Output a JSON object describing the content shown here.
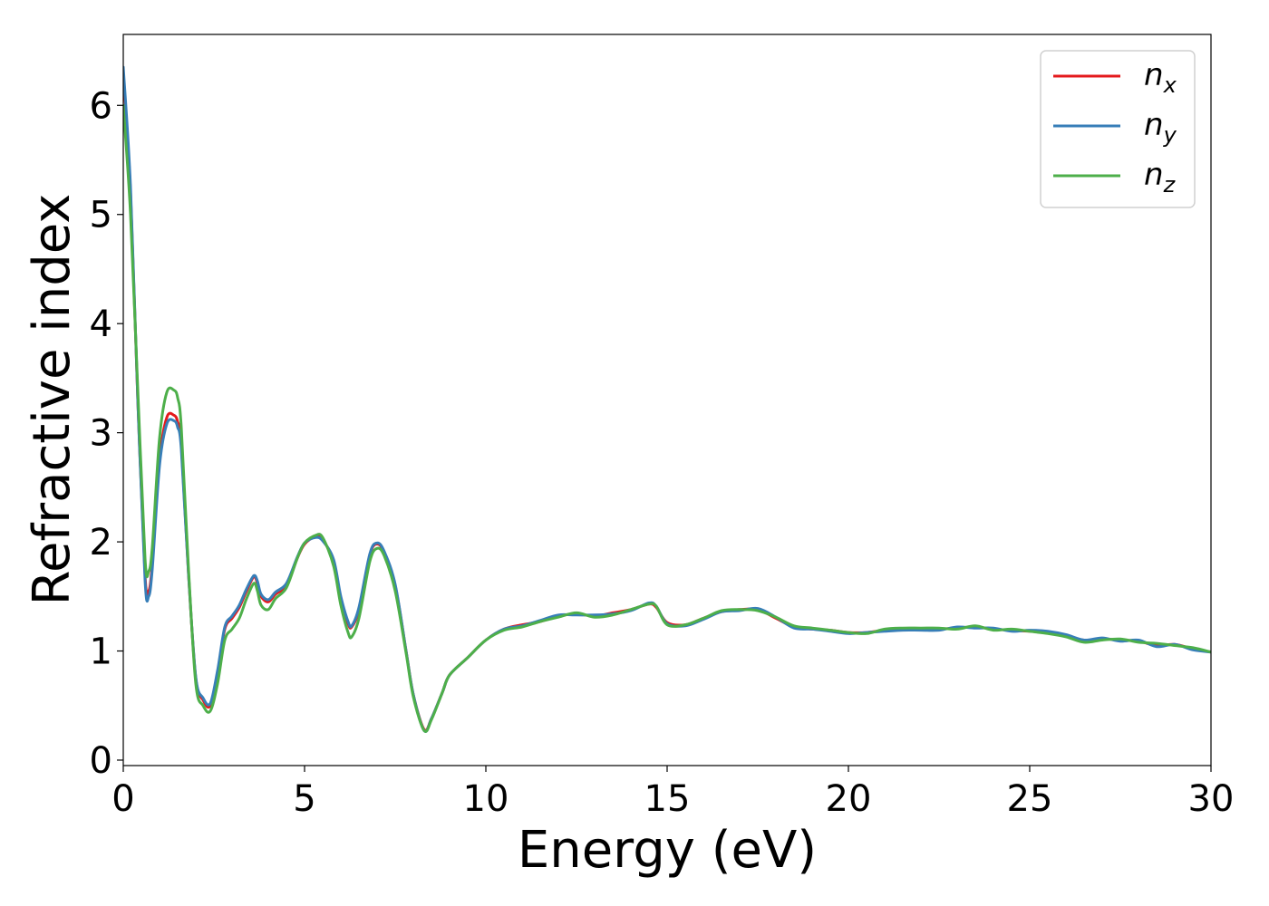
{
  "chart_data": {
    "type": "line",
    "title": "",
    "xlabel": "Energy (eV)",
    "ylabel": "Refractive index",
    "xlim": [
      0,
      30
    ],
    "ylim": [
      -0.05,
      6.65
    ],
    "xticks": [
      0,
      5,
      10,
      15,
      20,
      25,
      30
    ],
    "yticks": [
      0,
      1,
      2,
      3,
      4,
      5,
      6
    ],
    "grid": false,
    "legend_position": "top-right",
    "series": [
      {
        "name": "n",
        "subscript": "x",
        "color": "#e41a1c",
        "x": [
          0,
          0.2,
          0.4,
          0.6,
          0.7,
          0.8,
          1.0,
          1.2,
          1.4,
          1.5,
          1.6,
          1.8,
          2.0,
          2.2,
          2.4,
          2.6,
          2.8,
          3.0,
          3.2,
          3.4,
          3.6,
          3.7,
          3.8,
          4.0,
          4.2,
          4.5,
          4.8,
          5.0,
          5.3,
          5.5,
          5.8,
          6.0,
          6.2,
          6.3,
          6.5,
          6.8,
          7.0,
          7.2,
          7.5,
          7.8,
          8.0,
          8.3,
          8.5,
          8.8,
          9.0,
          9.5,
          10.0,
          10.5,
          11.0,
          11.5,
          12.0,
          12.5,
          13.0,
          13.5,
          14.0,
          14.5,
          14.7,
          15.0,
          15.5,
          16.0,
          16.5,
          17.0,
          17.5,
          18.0,
          18.5,
          19.0,
          19.5,
          20.0,
          20.5,
          21.0,
          21.5,
          22.0,
          22.5,
          23.0,
          23.5,
          24.0,
          24.5,
          25.0,
          25.5,
          26.0,
          26.5,
          27.0,
          27.5,
          28.0,
          28.5,
          29.0,
          29.5,
          30.0
        ],
        "y": [
          6.3,
          5.2,
          3.3,
          1.7,
          1.55,
          1.8,
          2.75,
          3.14,
          3.16,
          3.1,
          2.9,
          1.7,
          0.75,
          0.55,
          0.5,
          0.8,
          1.2,
          1.3,
          1.4,
          1.55,
          1.68,
          1.62,
          1.5,
          1.45,
          1.52,
          1.6,
          1.85,
          1.98,
          2.05,
          2.02,
          1.82,
          1.48,
          1.25,
          1.22,
          1.38,
          1.88,
          1.98,
          1.9,
          1.6,
          1.0,
          0.6,
          0.28,
          0.38,
          0.62,
          0.78,
          0.94,
          1.1,
          1.2,
          1.24,
          1.27,
          1.32,
          1.34,
          1.32,
          1.35,
          1.38,
          1.43,
          1.4,
          1.26,
          1.24,
          1.3,
          1.36,
          1.38,
          1.38,
          1.3,
          1.22,
          1.2,
          1.19,
          1.17,
          1.17,
          1.19,
          1.2,
          1.2,
          1.2,
          1.21,
          1.22,
          1.2,
          1.19,
          1.18,
          1.17,
          1.14,
          1.1,
          1.11,
          1.1,
          1.09,
          1.05,
          1.06,
          1.02,
          0.99
        ]
      },
      {
        "name": "n",
        "subscript": "y",
        "color": "#377eb8",
        "x": [
          0,
          0.2,
          0.4,
          0.6,
          0.7,
          0.8,
          1.0,
          1.2,
          1.4,
          1.5,
          1.6,
          1.8,
          2.0,
          2.2,
          2.4,
          2.6,
          2.8,
          3.0,
          3.2,
          3.4,
          3.6,
          3.7,
          3.8,
          4.0,
          4.2,
          4.5,
          4.8,
          5.0,
          5.3,
          5.5,
          5.8,
          6.0,
          6.2,
          6.3,
          6.5,
          6.8,
          7.0,
          7.2,
          7.5,
          7.8,
          8.0,
          8.3,
          8.5,
          8.8,
          9.0,
          9.5,
          10.0,
          10.5,
          11.0,
          11.5,
          12.0,
          12.5,
          13.0,
          13.5,
          14.0,
          14.5,
          14.7,
          15.0,
          15.5,
          16.0,
          16.5,
          17.0,
          17.5,
          18.0,
          18.5,
          19.0,
          19.5,
          20.0,
          20.5,
          21.0,
          21.5,
          22.0,
          22.5,
          23.0,
          23.5,
          24.0,
          24.5,
          25.0,
          25.5,
          26.0,
          26.5,
          27.0,
          27.5,
          28.0,
          28.5,
          29.0,
          29.5,
          30.0
        ],
        "y": [
          6.35,
          5.25,
          3.3,
          1.65,
          1.5,
          1.75,
          2.7,
          3.08,
          3.11,
          3.05,
          2.85,
          1.7,
          0.76,
          0.57,
          0.52,
          0.82,
          1.22,
          1.32,
          1.42,
          1.57,
          1.69,
          1.64,
          1.52,
          1.47,
          1.54,
          1.62,
          1.86,
          1.99,
          2.04,
          2.01,
          1.84,
          1.5,
          1.27,
          1.23,
          1.4,
          1.89,
          1.99,
          1.91,
          1.61,
          1.0,
          0.6,
          0.27,
          0.38,
          0.62,
          0.78,
          0.94,
          1.1,
          1.2,
          1.23,
          1.28,
          1.33,
          1.33,
          1.33,
          1.34,
          1.37,
          1.44,
          1.41,
          1.25,
          1.23,
          1.29,
          1.36,
          1.37,
          1.39,
          1.31,
          1.21,
          1.2,
          1.18,
          1.16,
          1.17,
          1.18,
          1.19,
          1.19,
          1.19,
          1.22,
          1.21,
          1.21,
          1.18,
          1.19,
          1.18,
          1.15,
          1.1,
          1.12,
          1.09,
          1.1,
          1.04,
          1.06,
          1.01,
          0.99
        ]
      },
      {
        "name": "n",
        "subscript": "z",
        "color": "#4daf4a",
        "x": [
          0,
          0.2,
          0.4,
          0.6,
          0.7,
          0.8,
          1.0,
          1.2,
          1.4,
          1.5,
          1.6,
          1.8,
          2.0,
          2.2,
          2.4,
          2.6,
          2.8,
          3.0,
          3.2,
          3.4,
          3.6,
          3.7,
          3.8,
          4.0,
          4.2,
          4.5,
          4.8,
          5.0,
          5.3,
          5.5,
          5.8,
          6.0,
          6.2,
          6.3,
          6.5,
          6.8,
          7.0,
          7.2,
          7.5,
          7.8,
          8.0,
          8.3,
          8.5,
          8.8,
          9.0,
          9.5,
          10.0,
          10.5,
          11.0,
          11.5,
          12.0,
          12.5,
          13.0,
          13.5,
          14.0,
          14.5,
          14.7,
          15.0,
          15.5,
          16.0,
          16.5,
          17.0,
          17.5,
          18.0,
          18.5,
          19.0,
          19.5,
          20.0,
          20.5,
          21.0,
          21.5,
          22.0,
          22.5,
          23.0,
          23.5,
          24.0,
          24.5,
          25.0,
          25.5,
          26.0,
          26.5,
          27.0,
          27.5,
          28.0,
          28.5,
          29.0,
          29.5,
          30.0
        ],
        "y": [
          6.0,
          5.0,
          3.4,
          1.85,
          1.73,
          1.95,
          2.95,
          3.37,
          3.39,
          3.32,
          3.05,
          1.75,
          0.7,
          0.5,
          0.45,
          0.7,
          1.1,
          1.2,
          1.3,
          1.48,
          1.62,
          1.55,
          1.42,
          1.38,
          1.48,
          1.58,
          1.85,
          1.99,
          2.06,
          2.04,
          1.78,
          1.42,
          1.17,
          1.13,
          1.3,
          1.82,
          1.94,
          1.87,
          1.55,
          0.98,
          0.58,
          0.27,
          0.37,
          0.62,
          0.78,
          0.94,
          1.1,
          1.19,
          1.22,
          1.27,
          1.31,
          1.35,
          1.31,
          1.33,
          1.38,
          1.43,
          1.41,
          1.24,
          1.24,
          1.3,
          1.37,
          1.38,
          1.37,
          1.31,
          1.23,
          1.21,
          1.19,
          1.17,
          1.16,
          1.2,
          1.21,
          1.21,
          1.21,
          1.2,
          1.23,
          1.19,
          1.2,
          1.18,
          1.16,
          1.13,
          1.08,
          1.1,
          1.11,
          1.08,
          1.07,
          1.05,
          1.03,
          0.99
        ]
      }
    ]
  }
}
